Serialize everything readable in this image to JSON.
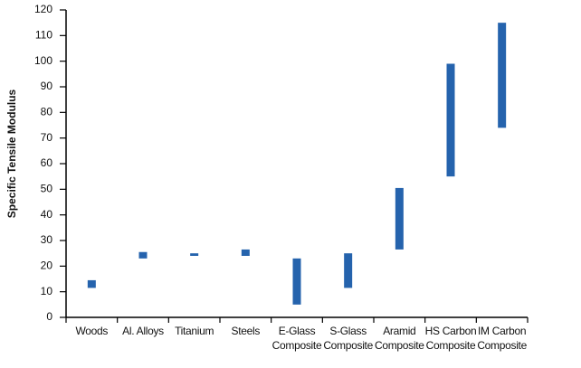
{
  "chart_data": {
    "type": "floating-bar",
    "y_label": "Specific Tensile Modulus",
    "categories": [
      "Woods",
      "Al. Alloys",
      "Titanium",
      "Steels",
      "E-Glass\nComposite",
      "S-Glass\nComposite",
      "Aramid\nComposite",
      "HS Carbon\nComposite",
      "IM Carbon\nComposite"
    ],
    "values": [
      [
        11.5,
        14.5
      ],
      [
        23,
        25.5
      ],
      [
        24,
        25
      ],
      [
        24,
        26.5
      ],
      [
        5,
        23
      ],
      [
        11.5,
        25
      ],
      [
        26.5,
        50.5
      ],
      [
        55,
        99
      ],
      [
        74,
        115
      ]
    ],
    "color": "#2563ad",
    "ylim": [
      0,
      120
    ],
    "yticks": [
      0,
      10,
      20,
      30,
      40,
      50,
      60,
      70,
      80,
      90,
      100,
      110,
      120
    ]
  }
}
